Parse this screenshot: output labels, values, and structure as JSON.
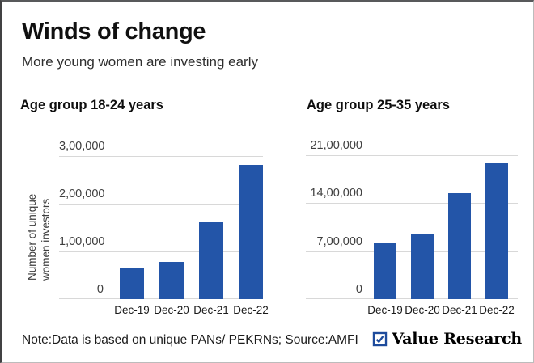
{
  "card": {
    "title": "Winds of change",
    "subtitle": "More young women are investing early",
    "note": "Note:Data is based on unique PANs/ PEKRNs; Source:AMFI",
    "brand": {
      "name": "Value Research",
      "icon": "checkbox-check-icon",
      "color": "#1e4b9c"
    }
  },
  "colors": {
    "bar": "#2355a8",
    "gridline": "#d8d8d8",
    "divider": "#b2b2b2",
    "tick_text": "#3e3e3e",
    "brand_blue": "#1e4b9c"
  },
  "chart_data": [
    {
      "type": "bar",
      "title": "Age group 18-24 years",
      "ylabel": "Number of unique women investors",
      "ylabel_lines": [
        "Number of unique",
        "women investors"
      ],
      "categories": [
        "Dec-19",
        "Dec-20",
        "Dec-21",
        "Dec-22"
      ],
      "values": [
        65000,
        78000,
        163000,
        282000
      ],
      "ylim": [
        0,
        300000
      ],
      "ytick_values": [
        0,
        100000,
        200000,
        300000
      ],
      "ytick_labels": [
        "0",
        "1,00,000",
        "2,00,000",
        "3,00,000"
      ],
      "grid": true,
      "legend": "none"
    },
    {
      "type": "bar",
      "title": "Age group 25-35 years",
      "ylabel": "",
      "ylabel_lines": [],
      "categories": [
        "Dec-19",
        "Dec-20",
        "Dec-21",
        "Dec-22"
      ],
      "values": [
        830000,
        940000,
        1540000,
        1990000
      ],
      "ylim": [
        0,
        2100000
      ],
      "ytick_values": [
        0,
        700000,
        1400000,
        2100000
      ],
      "ytick_labels": [
        "0",
        "7,00,000",
        "14,00,000",
        "21,00,000"
      ],
      "grid": true,
      "legend": "none"
    }
  ]
}
